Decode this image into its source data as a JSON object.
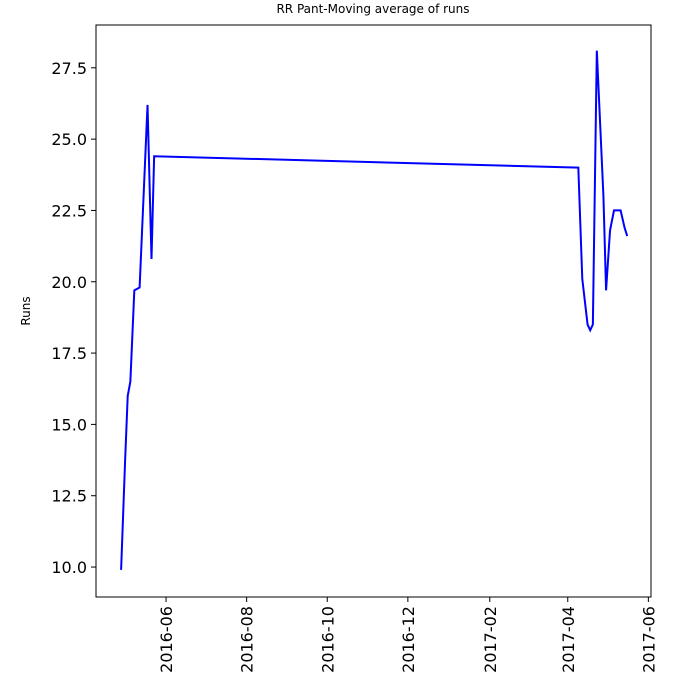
{
  "chart_data": {
    "type": "line",
    "title": "RR Pant-Moving average of runs",
    "ylabel": "Runs",
    "x": [
      "2016-04-28",
      "2016-05-01",
      "2016-05-03",
      "2016-05-05",
      "2016-05-08",
      "2016-05-12",
      "2016-05-18",
      "2016-05-21",
      "2016-05-23",
      "2017-04-09",
      "2017-04-12",
      "2017-04-16",
      "2017-04-18",
      "2017-04-20",
      "2017-04-23",
      "2017-04-28",
      "2017-04-30",
      "2017-05-03",
      "2017-05-06",
      "2017-05-11",
      "2017-05-14",
      "2017-05-16"
    ],
    "series": [
      {
        "name": "Runs",
        "color": "#0000ff",
        "values": [
          9.9,
          13.7,
          16.0,
          16.5,
          19.7,
          19.8,
          26.2,
          20.8,
          24.4,
          24.0,
          20.1,
          18.5,
          18.3,
          18.5,
          28.1,
          23.0,
          19.7,
          21.8,
          22.5,
          22.5,
          21.9,
          21.6
        ]
      }
    ],
    "xlim": [
      "2016-04-09",
      "2017-06-03"
    ],
    "xticks": [
      {
        "value": "2016-06-01",
        "label": "2016-06"
      },
      {
        "value": "2016-08-01",
        "label": "2016-08"
      },
      {
        "value": "2016-10-01",
        "label": "2016-10"
      },
      {
        "value": "2016-12-01",
        "label": "2016-12"
      },
      {
        "value": "2017-02-01",
        "label": "2017-02"
      },
      {
        "value": "2017-04-01",
        "label": "2017-04"
      },
      {
        "value": "2017-06-01",
        "label": "2017-06"
      }
    ],
    "ylim": [
      8.95,
      29.0
    ],
    "yticks": [
      {
        "value": 10,
        "label": "10.0"
      },
      {
        "value": 12.5,
        "label": "12.5"
      },
      {
        "value": 15,
        "label": "15.0"
      },
      {
        "value": 17.5,
        "label": "17.5"
      },
      {
        "value": 20,
        "label": "20.0"
      },
      {
        "value": 22.5,
        "label": "22.5"
      },
      {
        "value": 25,
        "label": "25.0"
      },
      {
        "value": 27.5,
        "label": "27.5"
      }
    ],
    "grid": false
  }
}
